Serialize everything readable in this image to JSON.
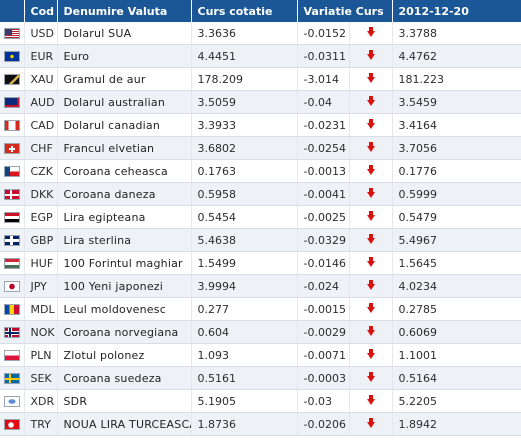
{
  "headers": {
    "code": "Cod",
    "name": "Denumire Valuta",
    "rate": "Curs cotatie",
    "variation": "Variatie Curs",
    "previous_date": "2012-12-20"
  },
  "colors": {
    "header_bg": "#1b5797",
    "down_arrow": "#d8130e",
    "row_alt": "#eef2f7"
  },
  "rows": [
    {
      "flag": "us-flag-icon",
      "code": "USD",
      "name": "Dolarul SUA",
      "rate": "3.3636",
      "variation": "-0.0152",
      "trend": "down",
      "previous": "3.3788"
    },
    {
      "flag": "eu-flag-icon",
      "code": "EUR",
      "name": "Euro",
      "rate": "4.4451",
      "variation": "-0.0311",
      "trend": "down",
      "previous": "4.4762"
    },
    {
      "flag": "gold-icon",
      "code": "XAU",
      "name": "Gramul de aur",
      "rate": "178.209",
      "variation": "-3.014",
      "trend": "down",
      "previous": "181.223"
    },
    {
      "flag": "australia-flag-icon",
      "code": "AUD",
      "name": "Dolarul australian",
      "rate": "3.5059",
      "variation": "-0.04",
      "trend": "down",
      "previous": "3.5459"
    },
    {
      "flag": "canada-flag-icon",
      "code": "CAD",
      "name": "Dolarul canadian",
      "rate": "3.3933",
      "variation": "-0.0231",
      "trend": "down",
      "previous": "3.4164"
    },
    {
      "flag": "switzerland-flag-icon",
      "code": "CHF",
      "name": "Francul elvetian",
      "rate": "3.6802",
      "variation": "-0.0254",
      "trend": "down",
      "previous": "3.7056"
    },
    {
      "flag": "czech-flag-icon",
      "code": "CZK",
      "name": "Coroana ceheasca",
      "rate": "0.1763",
      "variation": "-0.0013",
      "trend": "down",
      "previous": "0.1776"
    },
    {
      "flag": "denmark-flag-icon",
      "code": "DKK",
      "name": "Coroana daneza",
      "rate": "0.5958",
      "variation": "-0.0041",
      "trend": "down",
      "previous": "0.5999"
    },
    {
      "flag": "egypt-flag-icon",
      "code": "EGP",
      "name": "Lira egipteana",
      "rate": "0.5454",
      "variation": "-0.0025",
      "trend": "down",
      "previous": "0.5479"
    },
    {
      "flag": "uk-flag-icon",
      "code": "GBP",
      "name": "Lira sterlina",
      "rate": "5.4638",
      "variation": "-0.0329",
      "trend": "down",
      "previous": "5.4967"
    },
    {
      "flag": "hungary-flag-icon",
      "code": "HUF",
      "name": "100 Forintul maghiar",
      "rate": "1.5499",
      "variation": "-0.0146",
      "trend": "down",
      "previous": "1.5645"
    },
    {
      "flag": "japan-flag-icon",
      "code": "JPY",
      "name": "100 Yeni japonezi",
      "rate": "3.9994",
      "variation": "-0.024",
      "trend": "down",
      "previous": "4.0234"
    },
    {
      "flag": "moldova-flag-icon",
      "code": "MDL",
      "name": "Leul moldovenesc",
      "rate": "0.277",
      "variation": "-0.0015",
      "trend": "down",
      "previous": "0.2785"
    },
    {
      "flag": "norway-flag-icon",
      "code": "NOK",
      "name": "Coroana norvegiana",
      "rate": "0.604",
      "variation": "-0.0029",
      "trend": "down",
      "previous": "0.6069"
    },
    {
      "flag": "poland-flag-icon",
      "code": "PLN",
      "name": "Zlotul polonez",
      "rate": "1.093",
      "variation": "-0.0071",
      "trend": "down",
      "previous": "1.1001"
    },
    {
      "flag": "sweden-flag-icon",
      "code": "SEK",
      "name": "Coroana suedeza",
      "rate": "0.5161",
      "variation": "-0.0003",
      "trend": "down",
      "previous": "0.5164"
    },
    {
      "flag": "sdr-icon",
      "code": "XDR",
      "name": "SDR",
      "rate": "5.1905",
      "variation": "-0.03",
      "trend": "down",
      "previous": "5.2205"
    },
    {
      "flag": "turkey-flag-icon",
      "code": "TRY",
      "name": "NOUA LIRA TURCEASCA",
      "rate": "1.8736",
      "variation": "-0.0206",
      "trend": "down",
      "previous": "1.8942"
    }
  ]
}
